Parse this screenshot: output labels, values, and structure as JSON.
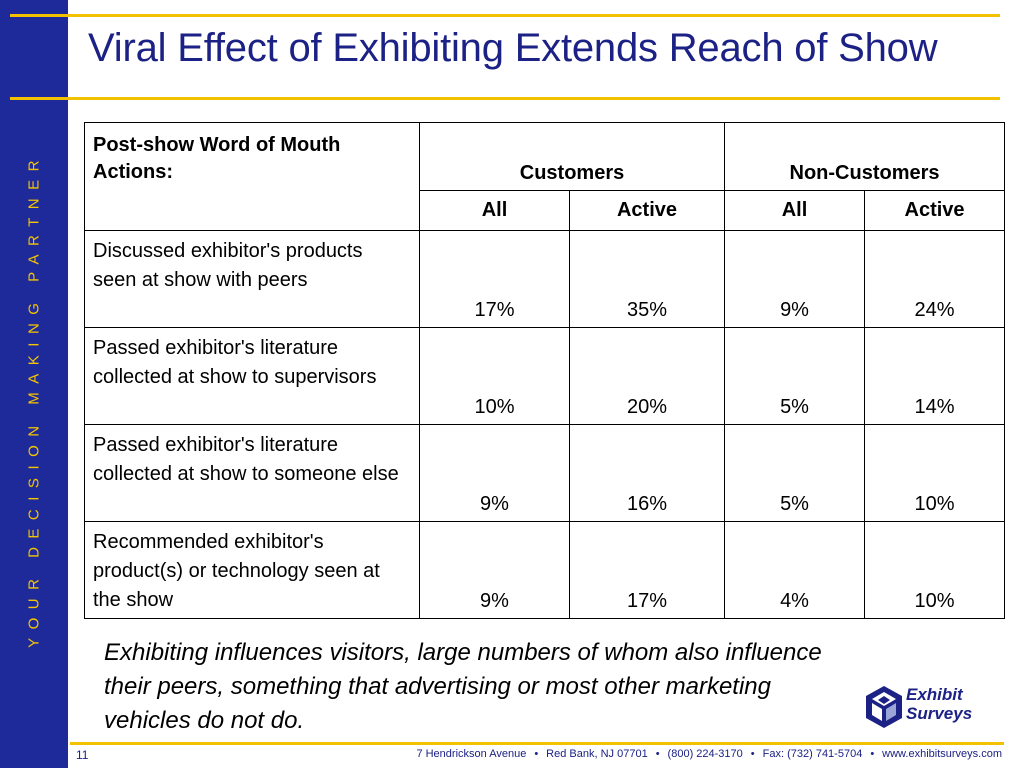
{
  "sidebar": {
    "tagline": "YOUR DECISION MAKING PARTNER"
  },
  "title": "Viral Effect of Exhibiting Extends Reach of Show",
  "table": {
    "header_label": "Post-show Word of Mouth Actions:",
    "groups": [
      "Customers",
      "Non-Customers"
    ],
    "subheaders": [
      "All",
      "Active",
      "All",
      "Active"
    ],
    "rows": [
      {
        "label": "Discussed exhibitor's products seen at show with peers",
        "values": [
          "17%",
          "35%",
          "9%",
          "24%"
        ]
      },
      {
        "label": "Passed exhibitor's literature collected at show to supervisors",
        "values": [
          "10%",
          "20%",
          "5%",
          "14%"
        ]
      },
      {
        "label": "Passed exhibitor's literature collected at show to someone else",
        "values": [
          "9%",
          "16%",
          "5%",
          "10%"
        ]
      },
      {
        "label": "Recommended exhibitor's product(s) or technology seen at the show",
        "values": [
          "9%",
          "17%",
          "4%",
          "10%"
        ]
      }
    ]
  },
  "caption": "Exhibiting influences visitors, large numbers of whom also influence their peers, something that advertising or most other marketing vehicles do not do.",
  "logo": {
    "line1": "Exhibit",
    "line2": "Surveys"
  },
  "footer": {
    "page_number": "11",
    "address_parts": [
      "7 Hendrickson Avenue",
      "Red Bank, NJ 07701",
      "(800) 224-3170",
      "Fax: (732) 741-5704",
      "www.exhibitsurveys.com"
    ],
    "separator": "•"
  },
  "colors": {
    "sidebar": "#1f2a9a",
    "accent": "#f2c200",
    "title": "#1c2185"
  }
}
